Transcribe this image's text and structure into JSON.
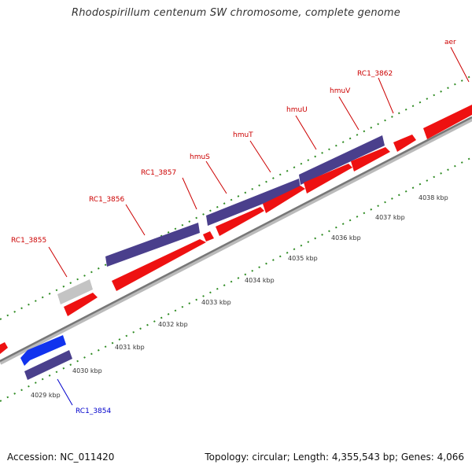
{
  "title": "Rhodospirillum centenum SW chromosome, complete genome",
  "footer": {
    "accession": "Accession: NC_011420",
    "summary": "Topology: circular; Length: 4,355,543 bp; Genes: 4,066"
  },
  "colors": {
    "forward_cds": "#ee1111",
    "reverse_cds": "#4a3f8c",
    "reverse_cds_highlight": "#1133ee",
    "other_gene": "#c4c4c4",
    "backbone": "#888888",
    "tick": "#2e8b22",
    "forward_label": "#cc0000",
    "reverse_label": "#0000cc"
  },
  "scale_labels": [
    "4029 kbp",
    "4030 kbp",
    "4031 kbp",
    "4032 kbp",
    "4033 kbp",
    "4034 kbp",
    "4035 kbp",
    "4036 kbp",
    "4037 kbp",
    "4038 kbp"
  ],
  "forward_gene_labels": [
    "RC1_3855",
    "RC1_3856",
    "RC1_3857",
    "hmuS",
    "hmuT",
    "hmuU",
    "hmuV",
    "RC1_3862",
    "aer"
  ],
  "reverse_gene_labels": [
    "RC1_3854"
  ]
}
